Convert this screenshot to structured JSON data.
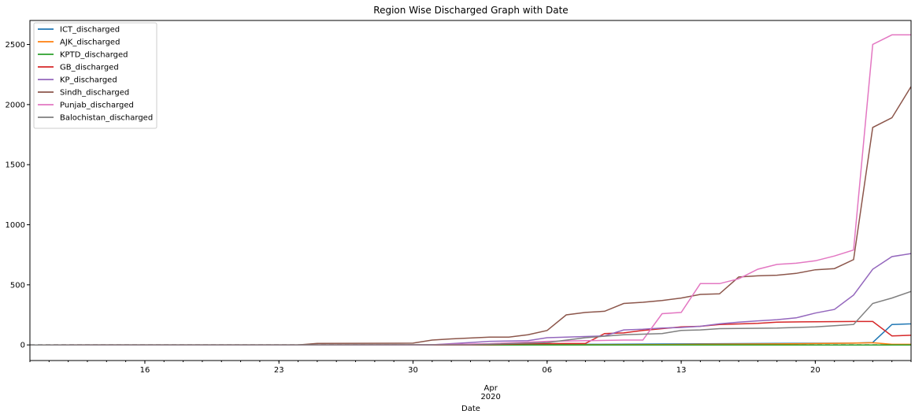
{
  "chart_data": {
    "type": "line",
    "title": "Region Wise Discharged Graph with Date",
    "xlabel": "Date",
    "ylabel": "",
    "x_start": "2020-03-10",
    "x_end": "2020-04-25",
    "ylim": [
      -130,
      2700
    ],
    "yticks": [
      0,
      500,
      1000,
      1500,
      2000,
      2500
    ],
    "xticks": [
      {
        "date": "2020-03-16",
        "label": "16"
      },
      {
        "date": "2020-03-23",
        "label": "23"
      },
      {
        "date": "2020-03-30",
        "label": "30"
      },
      {
        "date": "2020-04-06",
        "label": "06"
      },
      {
        "date": "2020-04-13",
        "label": "13"
      },
      {
        "date": "2020-04-20",
        "label": "20"
      }
    ],
    "xlabel_secondary": [
      "Apr",
      "2020"
    ],
    "legend_position": "upper-left",
    "grid": false,
    "series": [
      {
        "name": "ICT_discharged",
        "color": "#1f77b4",
        "points": [
          [
            "2020-03-10",
            0
          ],
          [
            "2020-03-30",
            0
          ],
          [
            "2020-04-03",
            2
          ],
          [
            "2020-04-08",
            5
          ],
          [
            "2020-04-13",
            8
          ],
          [
            "2020-04-18",
            12
          ],
          [
            "2020-04-22",
            15
          ],
          [
            "2020-04-23",
            20
          ],
          [
            "2020-04-24",
            170
          ],
          [
            "2020-04-25",
            175
          ],
          [
            "2020-04-26",
            185
          ]
        ]
      },
      {
        "name": "AJK_discharged",
        "color": "#ff7f0e",
        "points": [
          [
            "2020-03-10",
            0
          ],
          [
            "2020-04-05",
            1
          ],
          [
            "2020-04-12",
            3
          ],
          [
            "2020-04-18",
            8
          ],
          [
            "2020-04-22",
            15
          ],
          [
            "2020-04-23",
            18
          ],
          [
            "2020-04-24",
            5
          ],
          [
            "2020-04-26",
            5
          ]
        ]
      },
      {
        "name": "KPTD_discharged",
        "color": "#2ca02c",
        "points": [
          [
            "2020-03-10",
            0
          ],
          [
            "2020-04-26",
            0
          ]
        ]
      },
      {
        "name": "GB_discharged",
        "color": "#d62728",
        "points": [
          [
            "2020-03-10",
            0
          ],
          [
            "2020-04-02",
            0
          ],
          [
            "2020-04-05",
            10
          ],
          [
            "2020-04-08",
            12
          ],
          [
            "2020-04-09",
            95
          ],
          [
            "2020-04-10",
            100
          ],
          [
            "2020-04-11",
            120
          ],
          [
            "2020-04-12",
            135
          ],
          [
            "2020-04-13",
            150
          ],
          [
            "2020-04-14",
            155
          ],
          [
            "2020-04-15",
            170
          ],
          [
            "2020-04-17",
            180
          ],
          [
            "2020-04-18",
            190
          ],
          [
            "2020-04-20",
            193
          ],
          [
            "2020-04-22",
            195
          ],
          [
            "2020-04-23",
            195
          ],
          [
            "2020-04-24",
            75
          ],
          [
            "2020-04-25",
            80
          ],
          [
            "2020-04-26",
            78
          ]
        ]
      },
      {
        "name": "KP_discharged",
        "color": "#9467bd",
        "points": [
          [
            "2020-03-10",
            0
          ],
          [
            "2020-03-31",
            1
          ],
          [
            "2020-04-02",
            20
          ],
          [
            "2020-04-03",
            30
          ],
          [
            "2020-04-05",
            35
          ],
          [
            "2020-04-06",
            60
          ],
          [
            "2020-04-08",
            70
          ],
          [
            "2020-04-09",
            75
          ],
          [
            "2020-04-10",
            125
          ],
          [
            "2020-04-11",
            130
          ],
          [
            "2020-04-12",
            140
          ],
          [
            "2020-04-13",
            145
          ],
          [
            "2020-04-14",
            155
          ],
          [
            "2020-04-15",
            175
          ],
          [
            "2020-04-16",
            190
          ],
          [
            "2020-04-17",
            200
          ],
          [
            "2020-04-18",
            210
          ],
          [
            "2020-04-19",
            225
          ],
          [
            "2020-04-20",
            265
          ],
          [
            "2020-04-21",
            295
          ],
          [
            "2020-04-22",
            415
          ],
          [
            "2020-04-23",
            630
          ],
          [
            "2020-04-24",
            735
          ],
          [
            "2020-04-25",
            760
          ]
        ]
      },
      {
        "name": "Sindh_discharged",
        "color": "#8c564b",
        "points": [
          [
            "2020-03-10",
            0
          ],
          [
            "2020-03-24",
            0
          ],
          [
            "2020-03-25",
            12
          ],
          [
            "2020-03-30",
            15
          ],
          [
            "2020-03-31",
            40
          ],
          [
            "2020-04-01",
            50
          ],
          [
            "2020-04-03",
            65
          ],
          [
            "2020-04-04",
            65
          ],
          [
            "2020-04-05",
            85
          ],
          [
            "2020-04-06",
            120
          ],
          [
            "2020-04-07",
            250
          ],
          [
            "2020-04-08",
            270
          ],
          [
            "2020-04-09",
            280
          ],
          [
            "2020-04-10",
            345
          ],
          [
            "2020-04-11",
            355
          ],
          [
            "2020-04-12",
            370
          ],
          [
            "2020-04-13",
            390
          ],
          [
            "2020-04-14",
            420
          ],
          [
            "2020-04-15",
            425
          ],
          [
            "2020-04-16",
            565
          ],
          [
            "2020-04-17",
            575
          ],
          [
            "2020-04-18",
            580
          ],
          [
            "2020-04-19",
            595
          ],
          [
            "2020-04-20",
            625
          ],
          [
            "2020-04-21",
            635
          ],
          [
            "2020-04-22",
            710
          ],
          [
            "2020-04-23",
            1810
          ],
          [
            "2020-04-24",
            1890
          ],
          [
            "2020-04-25",
            2150
          ]
        ]
      },
      {
        "name": "Punjab_discharged",
        "color": "#e377c2",
        "points": [
          [
            "2020-03-10",
            0
          ],
          [
            "2020-03-30",
            0
          ],
          [
            "2020-04-03",
            10
          ],
          [
            "2020-04-06",
            30
          ],
          [
            "2020-04-08",
            35
          ],
          [
            "2020-04-10",
            40
          ],
          [
            "2020-04-11",
            40
          ],
          [
            "2020-04-12",
            260
          ],
          [
            "2020-04-13",
            270
          ],
          [
            "2020-04-14",
            510
          ],
          [
            "2020-04-15",
            510
          ],
          [
            "2020-04-16",
            550
          ],
          [
            "2020-04-17",
            630
          ],
          [
            "2020-04-18",
            670
          ],
          [
            "2020-04-19",
            680
          ],
          [
            "2020-04-20",
            700
          ],
          [
            "2020-04-21",
            740
          ],
          [
            "2020-04-22",
            790
          ],
          [
            "2020-04-23",
            2500
          ],
          [
            "2020-04-24",
            2580
          ],
          [
            "2020-04-25",
            2580
          ]
        ]
      },
      {
        "name": "Balochistan_discharged",
        "color": "#7f7f7f",
        "points": [
          [
            "2020-03-10",
            0
          ],
          [
            "2020-04-02",
            1
          ],
          [
            "2020-04-06",
            20
          ],
          [
            "2020-04-08",
            60
          ],
          [
            "2020-04-10",
            85
          ],
          [
            "2020-04-12",
            95
          ],
          [
            "2020-04-13",
            120
          ],
          [
            "2020-04-14",
            125
          ],
          [
            "2020-04-15",
            135
          ],
          [
            "2020-04-18",
            140
          ],
          [
            "2020-04-19",
            145
          ],
          [
            "2020-04-20",
            150
          ],
          [
            "2020-04-21",
            160
          ],
          [
            "2020-04-22",
            170
          ],
          [
            "2020-04-23",
            345
          ],
          [
            "2020-04-24",
            390
          ],
          [
            "2020-04-25",
            445
          ]
        ]
      }
    ],
    "baseline": {
      "y": 0,
      "color": "#000000",
      "style": "dashed"
    }
  }
}
